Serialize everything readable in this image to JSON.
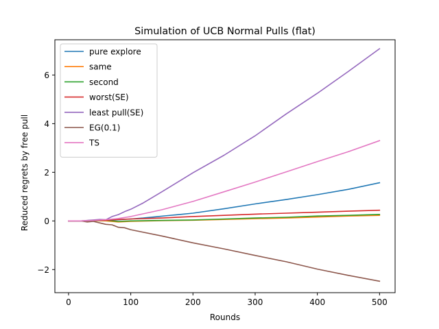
{
  "chart_data": {
    "type": "line",
    "title": "Simulation of UCB Normal Pulls (flat)",
    "xlabel": "Rounds",
    "ylabel": "Reduced regrets by free pull",
    "xlim": [
      -22,
      525
    ],
    "ylim": [
      -2.95,
      7.45
    ],
    "xticks": [
      0,
      100,
      200,
      300,
      400,
      500
    ],
    "yticks": [
      -2,
      0,
      2,
      4,
      6
    ],
    "ytick_labels": [
      "−2",
      "0",
      "2",
      "4",
      "6"
    ],
    "grid": false,
    "legend_position": "upper-left",
    "series": [
      {
        "name": "pure explore",
        "color": "#1f77b4",
        "x": [
          0,
          20,
          40,
          60,
          80,
          100,
          120,
          140,
          160,
          180,
          200,
          250,
          300,
          350,
          400,
          450,
          500
        ],
        "y": [
          0,
          0,
          0.01,
          0.02,
          0.05,
          0.08,
          0.12,
          0.17,
          0.22,
          0.27,
          0.32,
          0.5,
          0.7,
          0.88,
          1.08,
          1.3,
          1.57
        ]
      },
      {
        "name": "same",
        "color": "#ff7f0e",
        "x": [
          0,
          20,
          40,
          60,
          80,
          100,
          150,
          200,
          250,
          300,
          350,
          400,
          450,
          500
        ],
        "y": [
          0,
          0,
          0.01,
          0,
          -0.04,
          -0.02,
          0.01,
          0.03,
          0.06,
          0.09,
          0.12,
          0.16,
          0.2,
          0.23
        ]
      },
      {
        "name": "second",
        "color": "#2ca02c",
        "x": [
          0,
          20,
          40,
          60,
          80,
          100,
          150,
          200,
          250,
          300,
          350,
          400,
          450,
          500
        ],
        "y": [
          0,
          0,
          0.01,
          0.03,
          -0.02,
          0,
          0.02,
          0.04,
          0.08,
          0.12,
          0.15,
          0.2,
          0.23,
          0.27
        ]
      },
      {
        "name": "worst(SE)",
        "color": "#d62728",
        "x": [
          0,
          20,
          40,
          60,
          80,
          100,
          150,
          200,
          250,
          300,
          350,
          400,
          450,
          500
        ],
        "y": [
          0,
          0,
          0.02,
          0.03,
          0.06,
          0.08,
          0.12,
          0.18,
          0.23,
          0.28,
          0.32,
          0.36,
          0.4,
          0.44
        ]
      },
      {
        "name": "least pull(SE)",
        "color": "#9467bd",
        "x": [
          0,
          20,
          40,
          50,
          60,
          70,
          80,
          90,
          100,
          120,
          150,
          200,
          250,
          300,
          350,
          400,
          450,
          500
        ],
        "y": [
          0,
          0,
          0.04,
          0.06,
          0.05,
          0.18,
          0.26,
          0.38,
          0.48,
          0.74,
          1.2,
          1.98,
          2.7,
          3.5,
          4.4,
          5.25,
          6.15,
          7.08
        ]
      },
      {
        "name": "EG(0.1)",
        "color": "#8c564b",
        "x": [
          0,
          20,
          30,
          40,
          50,
          60,
          70,
          80,
          90,
          100,
          150,
          200,
          250,
          300,
          350,
          400,
          450,
          500
        ],
        "y": [
          0,
          0,
          -0.04,
          -0.02,
          -0.08,
          -0.14,
          -0.16,
          -0.26,
          -0.28,
          -0.36,
          -0.62,
          -0.9,
          -1.15,
          -1.42,
          -1.68,
          -1.98,
          -2.24,
          -2.48
        ]
      },
      {
        "name": "TS",
        "color": "#e377c2",
        "x": [
          0,
          20,
          40,
          60,
          80,
          100,
          150,
          200,
          250,
          300,
          350,
          400,
          450,
          500
        ],
        "y": [
          0,
          0,
          0.02,
          0.05,
          0.1,
          0.18,
          0.46,
          0.8,
          1.2,
          1.6,
          2.02,
          2.44,
          2.85,
          3.3
        ]
      }
    ]
  }
}
